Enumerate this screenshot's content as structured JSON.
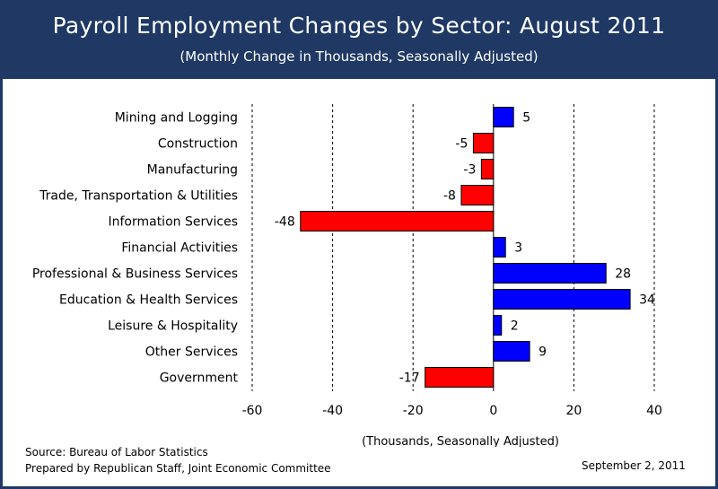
{
  "header": {
    "title": "Payroll Employment Changes by Sector: August 2011",
    "subtitle": "(Monthly Change in Thousands, Seasonally Adjusted)"
  },
  "footer": {
    "source": "Source:  Bureau of Labor Statistics",
    "prepared": "Prepared by Republican Staff, Joint Economic Committee",
    "date": "September 2, 2011"
  },
  "colors": {
    "positive": "#0000ff",
    "negative": "#ff0000",
    "header_bg": "#1f3864"
  },
  "chart_data": {
    "type": "bar",
    "orientation": "horizontal",
    "title": "Payroll Employment Changes by Sector: August 2011",
    "subtitle": "(Monthly Change in Thousands, Seasonally Adjusted)",
    "xlabel": "(Thousands, Seasonally Adjusted)",
    "ylabel": "",
    "xlim": [
      -60,
      40
    ],
    "xticks": [
      -60,
      -40,
      -20,
      0,
      20,
      40
    ],
    "xtick_labels": [
      "-60",
      "-40",
      "-20",
      "0",
      "20",
      "40"
    ],
    "grid": "vertical dashed",
    "categories": [
      "Mining and Logging",
      "Construction",
      "Manufacturing",
      "Trade, Transportation & Utilities",
      "Information Services",
      "Financial Activities",
      "Professional & Business Services",
      "Education & Health Services",
      "Leisure & Hospitality",
      "Other Services",
      "Government"
    ],
    "values": [
      5,
      -5,
      -3,
      -8,
      -48,
      3,
      28,
      34,
      2,
      9,
      -17
    ],
    "value_labels": [
      "5",
      "-5",
      "-3",
      "-8",
      "-48",
      "3",
      "28",
      "34",
      "2",
      "9",
      "-17"
    ]
  }
}
